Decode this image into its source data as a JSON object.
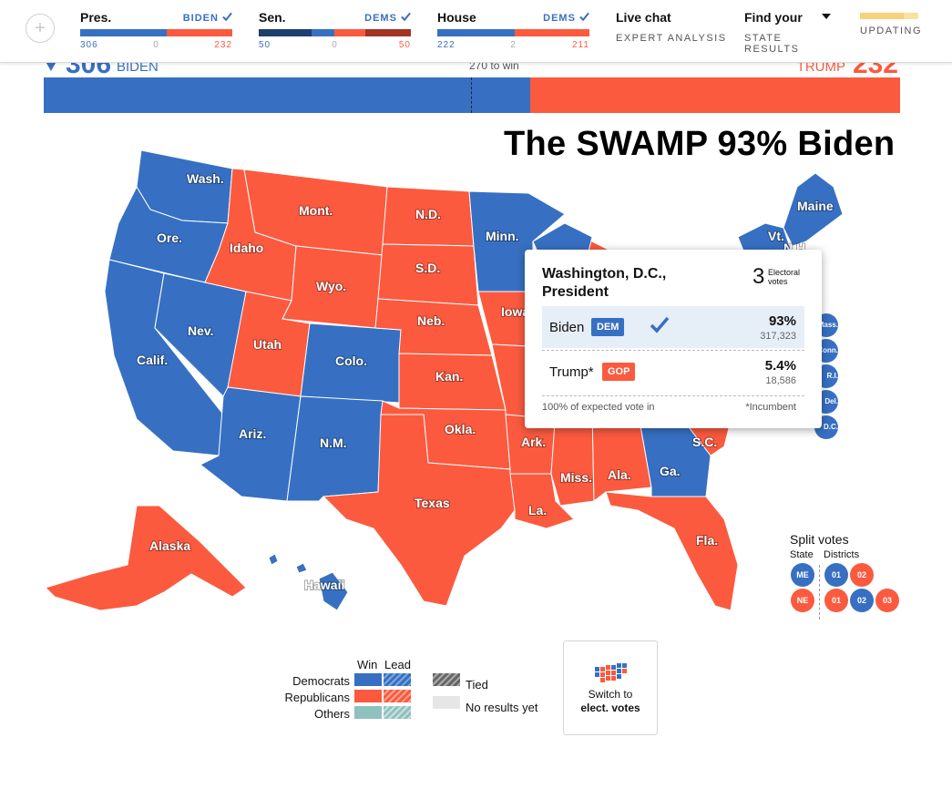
{
  "topbar": {
    "add_icon": "plus-icon",
    "races": [
      {
        "title": "Pres.",
        "winner": "BIDEN",
        "left": "306",
        "mid": "0",
        "right": "232"
      },
      {
        "title": "Sen.",
        "winner": "DEMS",
        "left": "50",
        "mid": "0",
        "right": "50"
      },
      {
        "title": "House",
        "winner": "DEMS",
        "left": "222",
        "mid": "2",
        "right": "211"
      }
    ],
    "live_chat": {
      "title": "Live chat",
      "subtitle": "EXPERT ANALYSIS"
    },
    "find_state": {
      "title": "Find your",
      "subtitle": "STATE RESULTS"
    },
    "updating": "UPDATING"
  },
  "electoral": {
    "dem_votes": "306",
    "dem_label": "BIDEN",
    "to_win": "270 to win",
    "gop_label": "TRUMP",
    "gop_votes": "232",
    "dem_share": 0.568
  },
  "headline": "The SWAMP 93% Biden",
  "map_labels": {
    "wash": "Wash.",
    "ore": "Ore.",
    "calif": "Calif.",
    "nev": "Nev.",
    "idaho": "Idaho",
    "mont": "Mont.",
    "wyo": "Wyo.",
    "utah": "Utah",
    "colo": "Colo.",
    "ariz": "Ariz.",
    "nm": "N.M.",
    "nd": "N.D.",
    "sd": "S.D.",
    "neb": "Neb.",
    "kan": "Kan.",
    "okla": "Okla.",
    "texas": "Texas",
    "minn": "Minn.",
    "iowa": "Iowa",
    "ark": "Ark.",
    "la": "La.",
    "miss": "Miss.",
    "ala": "Ala.",
    "ga": "Ga.",
    "sc": "S.C.",
    "fla": "Fla.",
    "maine": "Maine",
    "vt": "Vt.",
    "nh": "N.H.",
    "alaska": "Alaska",
    "hawaii": "Hawaii"
  },
  "ne_circles": [
    "Mass.",
    "Conn.",
    "R.I.",
    "Del.",
    "D.C."
  ],
  "tooltip": {
    "title": "Washington, D.C., President",
    "electoral_votes": "3",
    "electoral_label": "Electoral votes",
    "candidates": [
      {
        "name": "Biden",
        "party": "DEM",
        "pct": "93%",
        "votes": "317,323"
      },
      {
        "name": "Trump*",
        "party": "GOP",
        "pct": "5.4%",
        "votes": "18,586"
      }
    ],
    "reporting": "100% of expected vote in",
    "note": "*Incumbent"
  },
  "split_votes": {
    "title": "Split votes",
    "state_header": "State",
    "districts_header": "Districts",
    "me_state": "ME",
    "me_districts": [
      "01",
      "02"
    ],
    "ne_state": "NE",
    "ne_districts": [
      "01",
      "02",
      "03"
    ]
  },
  "legend": {
    "win": "Win",
    "lead": "Lead",
    "rows": [
      "Democrats",
      "Republicans",
      "Others"
    ],
    "tied": "Tied",
    "no_results": "No results yet"
  },
  "switch_button": {
    "line1": "Switch to",
    "line2": "elect. votes"
  },
  "colors": {
    "dem": "#3770c2",
    "gop": "#fb5a3f",
    "other": "#8fc1bf"
  }
}
